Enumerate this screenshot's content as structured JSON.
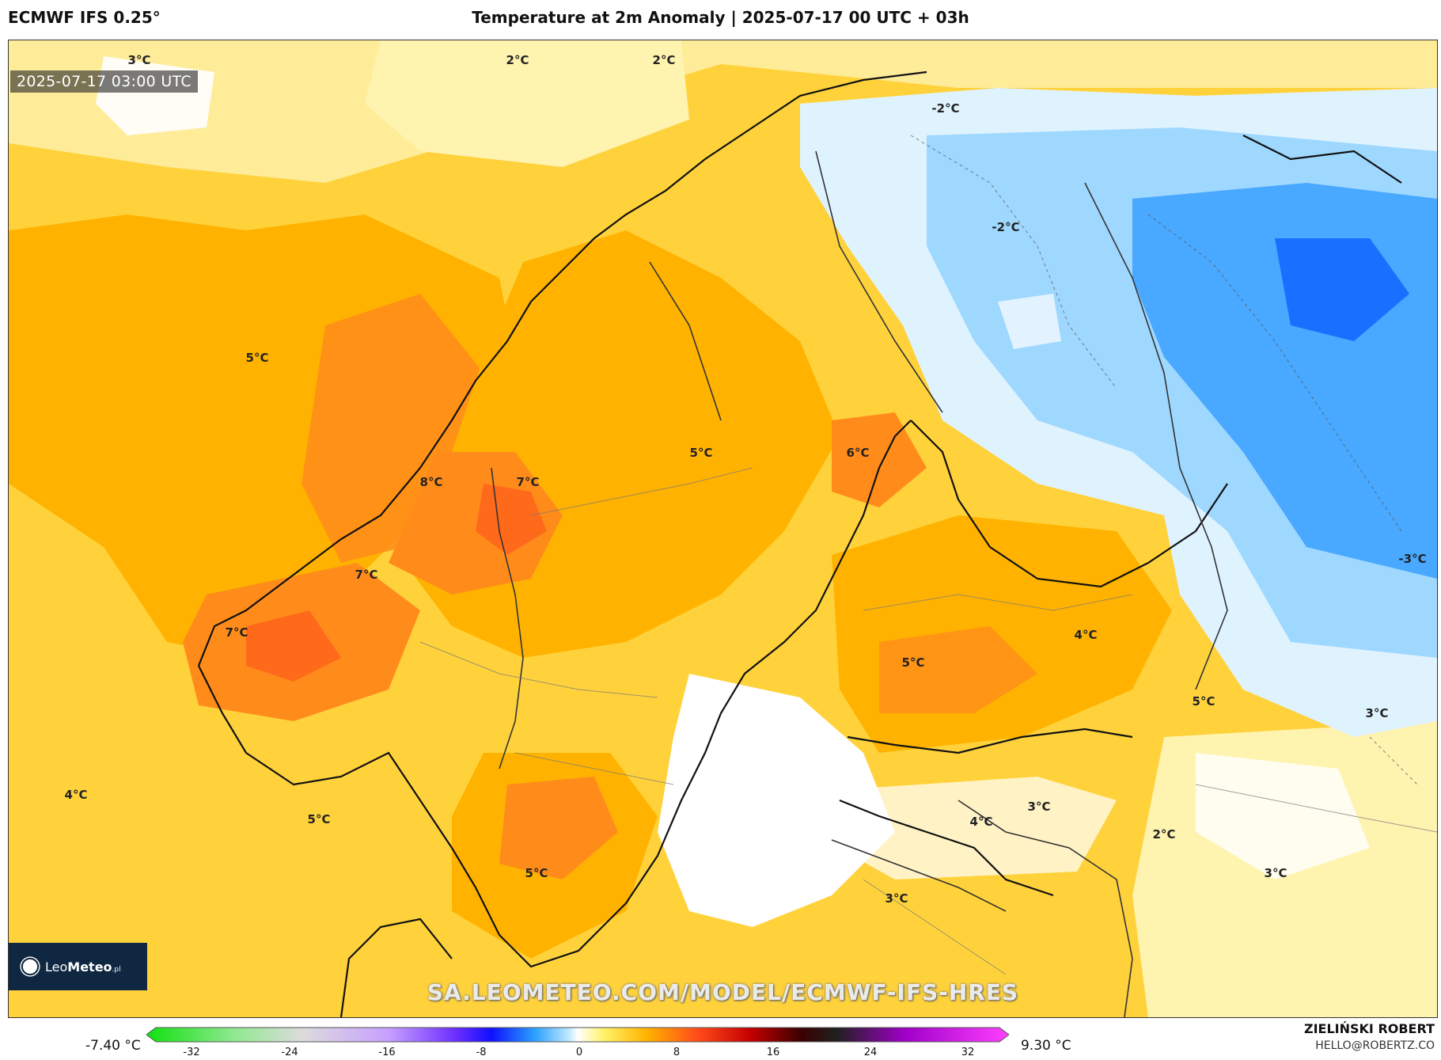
{
  "header": {
    "model": "ECMWF IFS 0.25°",
    "title": "Temperature at 2m Anomaly | 2025-07-17 00 UTC + 03h"
  },
  "map": {
    "timestamp": "2025-07-17 03:00 UTC",
    "watermark": "SA.LEOMETEO.COM/MODEL/ECMWF-IFS-HRES",
    "logo": {
      "name_light": "Leo",
      "name_bold": "Meteo",
      "suffix": ".pl"
    },
    "labels": [
      "3°C",
      "2°C",
      "2°C",
      "-2°C",
      "-2°C",
      "5°C",
      "8°C",
      "7°C",
      "5°C",
      "6°C",
      "7°C",
      "7°C",
      "-3°C",
      "4°C",
      "5°C",
      "5°C",
      "3°C",
      "4°C",
      "5°C",
      "3°C",
      "4°C",
      "5°C",
      "2°C",
      "3°C",
      "3°C"
    ],
    "colors": {
      "warm_light": "#fff3b0",
      "warm_mid": "#ffd23c",
      "warm_high": "#ffb300",
      "warm_strong": "#ff8c1a",
      "warm_peak": "#ff6a1a",
      "neutral": "#ffffff",
      "cold_light": "#dff3ff",
      "cold_mid": "#9fd8ff",
      "cold_strong": "#3aa0ff",
      "cold_peak": "#1468ff"
    }
  },
  "colorbar": {
    "min_label": "-7.40 °C",
    "max_label": "9.30 °C",
    "ticks": [
      "-32",
      "-24",
      "-16",
      "-8",
      "0",
      "8",
      "16",
      "24",
      "32"
    ]
  },
  "author": {
    "name": "ZIELIŃSKI ROBERT",
    "email": "HELLO@ROBERTZ.CO"
  }
}
